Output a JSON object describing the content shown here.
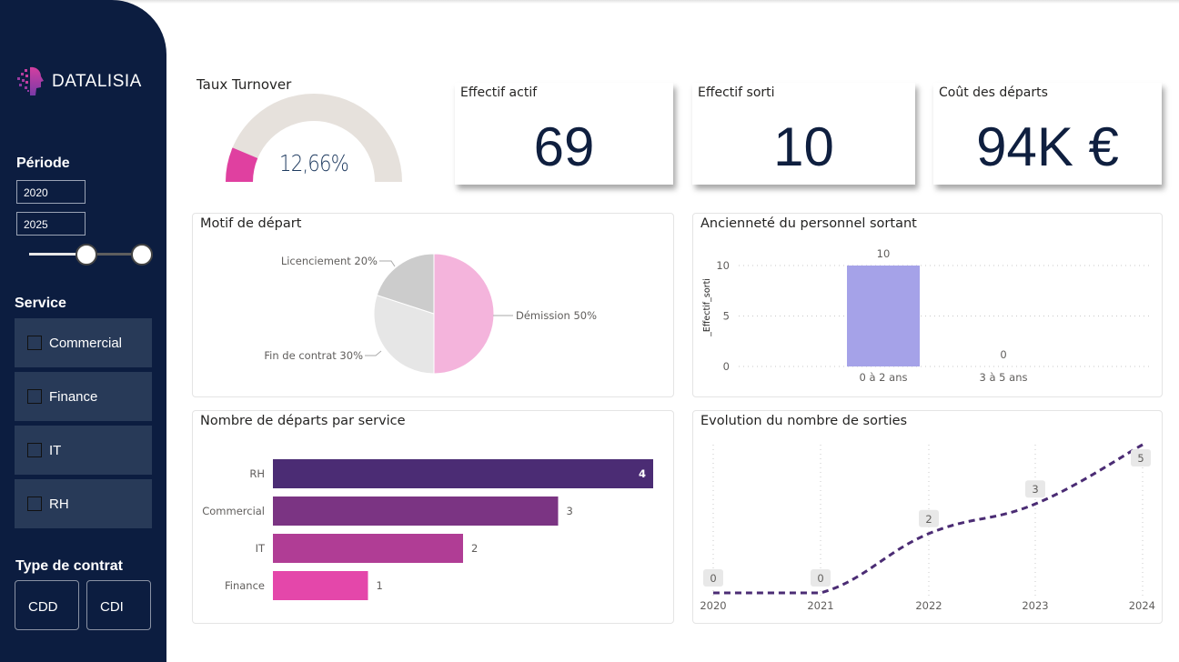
{
  "brand": {
    "name": "DATALISIA",
    "accent": "#e040a0"
  },
  "sidebar": {
    "periode": {
      "title": "Période",
      "start": "2020",
      "end": "2025",
      "slider_range": [
        2020,
        2025
      ]
    },
    "service": {
      "title": "Service",
      "items": [
        {
          "label": "Commercial",
          "checked": false
        },
        {
          "label": "Finance",
          "checked": false
        },
        {
          "label": "IT",
          "checked": false
        },
        {
          "label": "RH",
          "checked": false
        }
      ]
    },
    "contrat": {
      "title": "Type de contrat",
      "options": [
        "CDD",
        "CDI"
      ]
    }
  },
  "gauge": {
    "title": "Taux Turnover",
    "value_label": "12,66%",
    "value": 12.66,
    "max": 100,
    "fill_color": "#e040a0",
    "track_color": "#e6e1dc"
  },
  "kpis": [
    {
      "title": "Effectif actif",
      "value": "69"
    },
    {
      "title": "Effectif sorti",
      "value": "10"
    },
    {
      "title": "Coût des départs",
      "value": "94K €"
    }
  ],
  "chart_data": [
    {
      "type": "pie",
      "title": "Motif de départ",
      "slices": [
        {
          "label": "Démission 50%",
          "name": "Démission",
          "value": 50,
          "color": "#f4b4dc"
        },
        {
          "label": "Fin de contrat 30%",
          "name": "Fin de contrat",
          "value": 30,
          "color": "#e6e6e6"
        },
        {
          "label": "Licenciement 20%",
          "name": "Licenciement",
          "value": 20,
          "color": "#cccccc"
        }
      ]
    },
    {
      "type": "bar",
      "title": "Ancienneté du personnel sortant",
      "categories": [
        "0 à 2 ans",
        "3 à 5 ans"
      ],
      "values": [
        10,
        0
      ],
      "value_labels": [
        "10",
        "0"
      ],
      "ylabel": "_Effectif_sorti",
      "yticks": [
        "0",
        "5",
        "10"
      ],
      "ylim": [
        0,
        10
      ],
      "grid": true,
      "color": "#a5a2e8"
    },
    {
      "type": "bar",
      "orientation": "horizontal",
      "title": "Nombre de départs par service",
      "categories": [
        "RH",
        "Commercial",
        "IT",
        "Finance"
      ],
      "values": [
        4,
        3,
        2,
        1
      ],
      "value_labels": [
        "4",
        "3",
        "2",
        "1"
      ],
      "colors": [
        "#4b2c74",
        "#7b3483",
        "#b03d95",
        "#e447aa"
      ],
      "xlim": [
        0,
        4
      ]
    },
    {
      "type": "line",
      "title": "Evolution du nombre de sorties",
      "x": [
        "2020",
        "2021",
        "2022",
        "2023",
        "2024"
      ],
      "values": [
        0,
        0,
        2,
        3,
        5
      ],
      "value_labels": [
        "0",
        "0",
        "2",
        "3",
        "5"
      ],
      "ylim": [
        0,
        5
      ],
      "line_style": "dashed",
      "color": "#4b2c74"
    }
  ]
}
